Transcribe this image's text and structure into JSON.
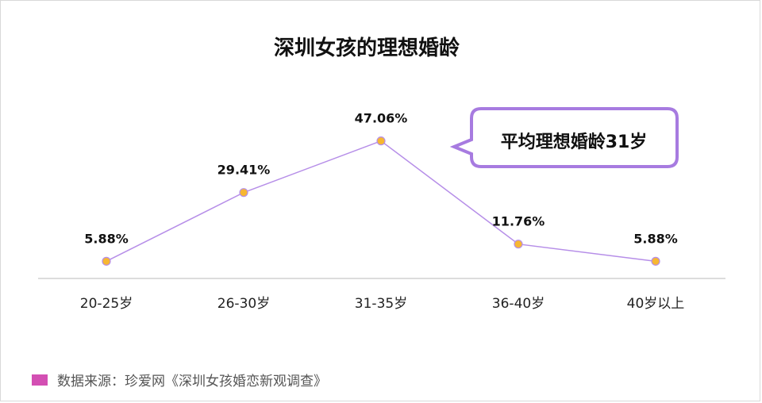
{
  "colors": {
    "line": "#b68ee8",
    "marker_fill": "#f7b731",
    "marker_stroke": "#b68ee8",
    "callout_border": "#a77be0",
    "axis": "#d0d0d0",
    "source_swatch": "#d34fb3"
  },
  "chart_data": {
    "type": "line",
    "title": "深圳女孩的理想婚龄",
    "categories": [
      "20-25岁",
      "26-30岁",
      "31-35岁",
      "36-40岁",
      "40岁以上"
    ],
    "values": [
      5.88,
      29.41,
      47.06,
      11.76,
      5.88
    ],
    "data_labels": [
      "5.88%",
      "29.41%",
      "47.06%",
      "11.76%",
      "5.88%"
    ],
    "ylim": [
      0,
      60
    ],
    "grid": false,
    "annotations": [
      {
        "text": "平均理想婚龄31岁",
        "style": "speech-bubble"
      }
    ]
  },
  "source": {
    "text": "数据来源：珍爱网《深圳女孩婚恋新观调查》"
  }
}
